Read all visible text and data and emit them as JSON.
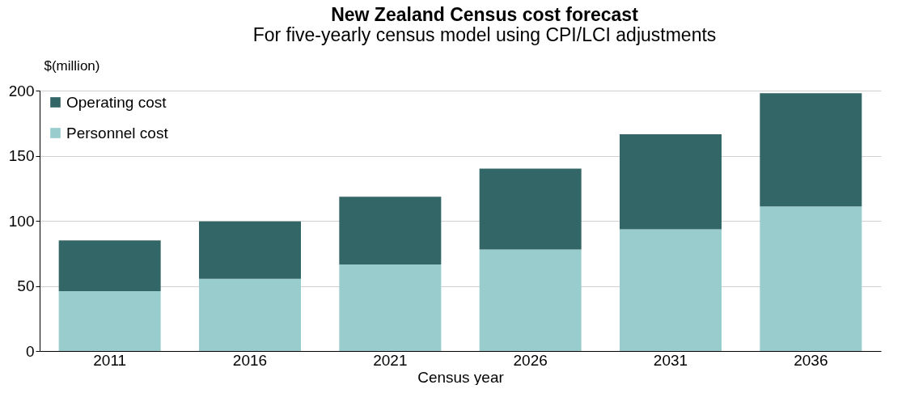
{
  "chart_data": {
    "type": "bar",
    "title": "New Zealand Census cost forecast",
    "subtitle": "For five-yearly census model using CPI/LCI adjustments",
    "xlabel": "Census year",
    "ylabel": "$(million)",
    "categories": [
      "2011",
      "2016",
      "2021",
      "2026",
      "2031",
      "2036"
    ],
    "series": [
      {
        "name": "Personnel cost",
        "color": "#99cccc",
        "values": [
          46,
          55.5,
          66.5,
          78,
          93.5,
          111
        ]
      },
      {
        "name": "Operating cost",
        "color": "#336666",
        "values": [
          39,
          44,
          52,
          62,
          73,
          87
        ]
      }
    ],
    "stacked": true,
    "ylim": [
      0,
      200
    ],
    "yticks": [
      0,
      50,
      100,
      150,
      200
    ],
    "grid": "y",
    "legend": "top left"
  }
}
